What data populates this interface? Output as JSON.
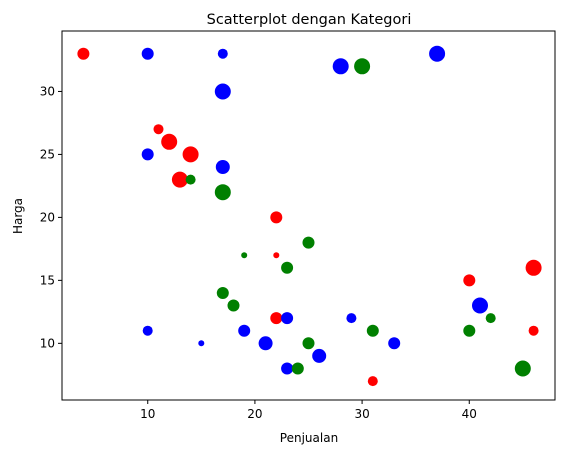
{
  "chart_data": {
    "type": "scatter",
    "title": "Scatterplot dengan Kategori",
    "xlabel": "Penjualan",
    "ylabel": "Harga",
    "xlim": [
      2,
      48
    ],
    "ylim": [
      5.5,
      34.8
    ],
    "xticks": [
      10,
      20,
      30,
      40
    ],
    "yticks": [
      10,
      15,
      20,
      25,
      30
    ],
    "grid": false,
    "legend": "none",
    "colors": {
      "red": "#ff0000",
      "blue": "#0000ff",
      "green": "#008000"
    },
    "points": [
      {
        "x": 4,
        "y": 33,
        "color": "red",
        "size": 6
      },
      {
        "x": 10,
        "y": 33,
        "color": "blue",
        "size": 6
      },
      {
        "x": 17,
        "y": 33,
        "color": "blue",
        "size": 5
      },
      {
        "x": 17,
        "y": 30,
        "color": "blue",
        "size": 8
      },
      {
        "x": 28,
        "y": 32,
        "color": "blue",
        "size": 8
      },
      {
        "x": 30,
        "y": 32,
        "color": "green",
        "size": 8
      },
      {
        "x": 37,
        "y": 33,
        "color": "blue",
        "size": 8
      },
      {
        "x": 11,
        "y": 27,
        "color": "red",
        "size": 5
      },
      {
        "x": 12,
        "y": 26,
        "color": "red",
        "size": 8
      },
      {
        "x": 10,
        "y": 25,
        "color": "blue",
        "size": 6
      },
      {
        "x": 14,
        "y": 25,
        "color": "red",
        "size": 8
      },
      {
        "x": 17,
        "y": 24,
        "color": "blue",
        "size": 7
      },
      {
        "x": 13,
        "y": 23,
        "color": "red",
        "size": 8
      },
      {
        "x": 14,
        "y": 23,
        "color": "green",
        "size": 5
      },
      {
        "x": 17,
        "y": 22,
        "color": "green",
        "size": 8
      },
      {
        "x": 22,
        "y": 20,
        "color": "red",
        "size": 6
      },
      {
        "x": 25,
        "y": 18,
        "color": "green",
        "size": 6
      },
      {
        "x": 19,
        "y": 17,
        "color": "green",
        "size": 3
      },
      {
        "x": 22,
        "y": 17,
        "color": "red",
        "size": 3
      },
      {
        "x": 23,
        "y": 16,
        "color": "green",
        "size": 6
      },
      {
        "x": 46,
        "y": 16,
        "color": "red",
        "size": 8
      },
      {
        "x": 40,
        "y": 15,
        "color": "red",
        "size": 6
      },
      {
        "x": 17,
        "y": 14,
        "color": "green",
        "size": 6
      },
      {
        "x": 18,
        "y": 13,
        "color": "green",
        "size": 6
      },
      {
        "x": 41,
        "y": 13,
        "color": "blue",
        "size": 8
      },
      {
        "x": 22,
        "y": 12,
        "color": "red",
        "size": 6
      },
      {
        "x": 23,
        "y": 12,
        "color": "blue",
        "size": 6
      },
      {
        "x": 29,
        "y": 12,
        "color": "blue",
        "size": 5
      },
      {
        "x": 42,
        "y": 12,
        "color": "green",
        "size": 5
      },
      {
        "x": 10,
        "y": 11,
        "color": "blue",
        "size": 5
      },
      {
        "x": 19,
        "y": 11,
        "color": "blue",
        "size": 6
      },
      {
        "x": 31,
        "y": 11,
        "color": "green",
        "size": 6
      },
      {
        "x": 40,
        "y": 11,
        "color": "green",
        "size": 6
      },
      {
        "x": 46,
        "y": 11,
        "color": "red",
        "size": 5
      },
      {
        "x": 15,
        "y": 10,
        "color": "blue",
        "size": 3
      },
      {
        "x": 21,
        "y": 10,
        "color": "blue",
        "size": 7
      },
      {
        "x": 25,
        "y": 10,
        "color": "green",
        "size": 6
      },
      {
        "x": 33,
        "y": 10,
        "color": "blue",
        "size": 6
      },
      {
        "x": 26,
        "y": 9,
        "color": "blue",
        "size": 7
      },
      {
        "x": 23,
        "y": 8,
        "color": "blue",
        "size": 6
      },
      {
        "x": 24,
        "y": 8,
        "color": "green",
        "size": 6
      },
      {
        "x": 45,
        "y": 8,
        "color": "green",
        "size": 8
      },
      {
        "x": 31,
        "y": 7,
        "color": "red",
        "size": 5
      }
    ]
  }
}
